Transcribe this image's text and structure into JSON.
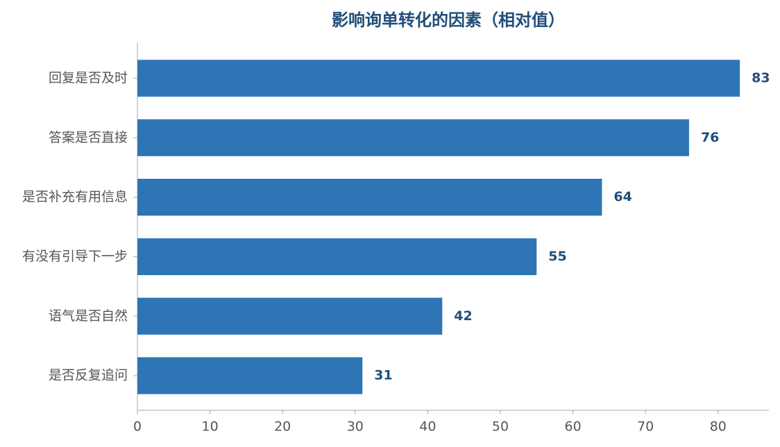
{
  "chart_data": {
    "type": "bar",
    "orientation": "horizontal",
    "title": "影响询单转化的因素（相对值）",
    "categories": [
      "回复是否及时",
      "答案是否直接",
      "是否补充有用信息",
      "有没有引导下一步",
      "语气是否自然",
      "是否反复追问"
    ],
    "values": [
      83,
      76,
      64,
      55,
      42,
      31
    ],
    "color": "#2e75b6",
    "xlim": [
      0,
      87
    ],
    "xticks": [
      0,
      10,
      20,
      30,
      40,
      50,
      60,
      70,
      80
    ],
    "grid": false
  }
}
